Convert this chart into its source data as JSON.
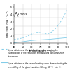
{
  "xlabel": "Temperature (°C)",
  "ylabel": "Heat flow (mW · °C⁻¹)",
  "xlim": [
    40,
    100
  ],
  "x_ticks": [
    40,
    50,
    60,
    70,
    80,
    90,
    100
  ],
  "background_color": "#ffffff",
  "line1_color": "#82cce8",
  "line1_style": "dashed",
  "line2_color": "#82cce8",
  "line2_style": "solid",
  "scale_label": "1 mW/s",
  "caption_1": "Signal obtained at the first heating cycle, showing the superposition of the relaxation enthalpy and glass transition phenomena.",
  "caption_2": "Signal obtained at the second heating curve, demonstrating the reversibility of the glass transition (17 mg, 10 °C · min⁻¹)."
}
